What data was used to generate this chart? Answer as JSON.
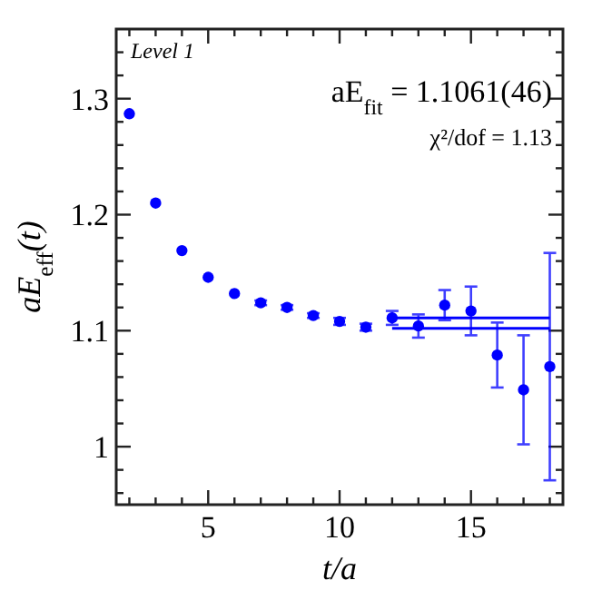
{
  "chart_data": {
    "type": "scatter",
    "xlabel": "t/a",
    "ylabel": "aE$_{eff}$(t)",
    "annotations": [
      "Level 1",
      "aE$_{fit}$ = 1.1061(46)",
      "χ²/dof = 1.13"
    ],
    "xlim": [
      1.5,
      18.5
    ],
    "ylim": [
      0.95,
      1.36
    ],
    "xticks": [
      {
        "value": 2,
        "label": null
      },
      {
        "value": 3,
        "label": null
      },
      {
        "value": 4,
        "label": null
      },
      5,
      {
        "value": 6,
        "label": null
      },
      {
        "value": 7,
        "label": null
      },
      {
        "value": 8,
        "label": null
      },
      {
        "value": 9,
        "label": null
      },
      10,
      {
        "value": 11,
        "label": null
      },
      {
        "value": 12,
        "label": null
      },
      {
        "value": 13,
        "label": null
      },
      {
        "value": 14,
        "label": null
      },
      15,
      {
        "value": 16,
        "label": null
      },
      {
        "value": 17,
        "label": null
      },
      {
        "value": 18,
        "label": null
      }
    ],
    "yticks": [
      {
        "value": 0.96,
        "label": null
      },
      {
        "value": 0.98,
        "label": null
      },
      1,
      {
        "value": 1.02,
        "label": null
      },
      {
        "value": 1.04,
        "label": null
      },
      {
        "value": 1.06,
        "label": null
      },
      {
        "value": 1.08,
        "label": null
      },
      1.1,
      {
        "value": 1.12,
        "label": null
      },
      {
        "value": 1.14,
        "label": null
      },
      {
        "value": 1.16,
        "label": null
      },
      {
        "value": 1.18,
        "label": null
      },
      1.2,
      {
        "value": 1.22,
        "label": null
      },
      {
        "value": 1.24,
        "label": null
      },
      {
        "value": 1.26,
        "label": null
      },
      {
        "value": 1.28,
        "label": null
      },
      1.3,
      {
        "value": 1.32,
        "label": null
      },
      {
        "value": 1.34,
        "label": null
      }
    ],
    "grid": false,
    "series": [
      {
        "marker": "circle",
        "color": "#0000ff",
        "x": [
          2,
          3,
          4,
          5,
          6,
          7,
          8,
          9,
          10,
          11,
          12,
          13,
          14,
          15,
          16,
          17,
          18
        ],
        "values": [
          1.287,
          1.21,
          1.169,
          1.146,
          1.132,
          1.124,
          1.12,
          1.113,
          1.108,
          1.103,
          1.111,
          1.104,
          1.122,
          1.117,
          1.079,
          1.049,
          1.069
        ],
        "errors": [
          null,
          null,
          null,
          null,
          null,
          0.002,
          0.002,
          0.002,
          0.003,
          0.003,
          0.006,
          0.01,
          0.013,
          0.021,
          0.028,
          0.047,
          0.098
        ]
      },
      {
        "type": "line",
        "color": "#0000ff",
        "x": [
          12,
          18
        ],
        "values": [
          1.111,
          1.111
        ]
      },
      {
        "type": "line",
        "color": "#0000ff",
        "x": [
          12,
          18
        ],
        "values": [
          1.102,
          1.102
        ]
      }
    ]
  }
}
